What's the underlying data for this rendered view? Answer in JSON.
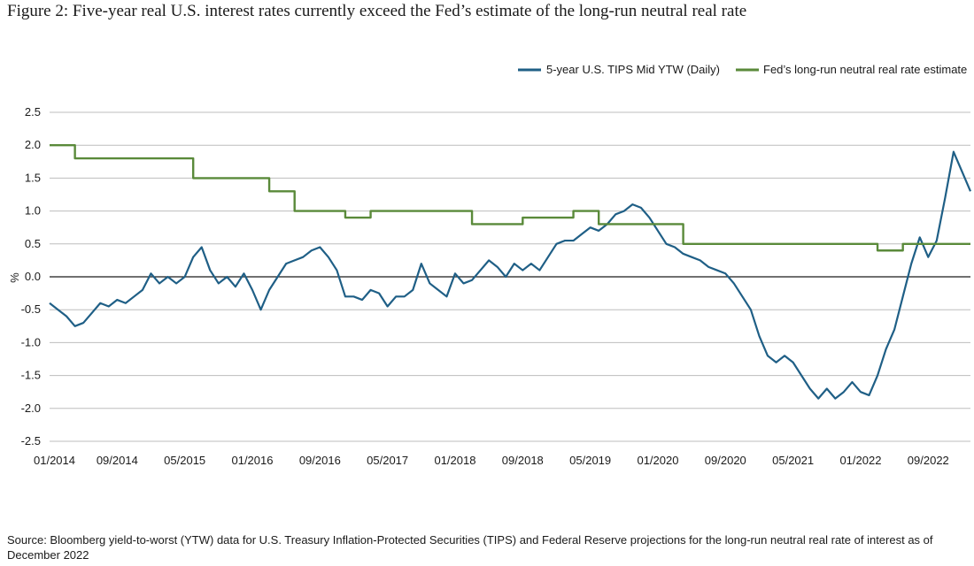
{
  "title": "Figure 2: Five-year real U.S. interest rates currently exceed the Fed’s estimate of the long-run neutral real rate",
  "source": "Source: Bloomberg yield-to-worst (YTW) data for U.S. Treasury Inflation-Protected Securities (TIPS) and Federal Reserve projections for the long-run neutral real rate of interest as of December 2022",
  "chart_data": {
    "type": "line",
    "title": "Figure 2: Five-year real U.S. interest rates currently exceed the Fed’s estimate of the long-run neutral real rate",
    "xlabel": "",
    "ylabel": "%",
    "ylim": [
      -2.5,
      2.5
    ],
    "yticks": [
      "2.5",
      "2.0",
      "1.5",
      "1.0",
      "0.5",
      "0.0",
      "-0.5",
      "-1.0",
      "-1.5",
      "-2.0",
      "-2.5"
    ],
    "xticks": [
      "01/2014",
      "09/2014",
      "05/2015",
      "01/2016",
      "09/2016",
      "05/2017",
      "01/2018",
      "09/2018",
      "05/2019",
      "01/2020",
      "09/2020",
      "05/2021",
      "01/2022",
      "09/2022"
    ],
    "xlim": [
      "2014-01",
      "2023-02"
    ],
    "grid": "horizontal",
    "legend_position": "top-right",
    "colors": {
      "tips": "#1f5f86",
      "neutral": "#5a8a3a"
    },
    "series": [
      {
        "name": "5-year U.S. TIPS Mid YTW (Daily)",
        "color": "#1f5f86",
        "points": [
          [
            "2014-01",
            -0.4
          ],
          [
            "2014-02",
            -0.5
          ],
          [
            "2014-03",
            -0.6
          ],
          [
            "2014-04",
            -0.75
          ],
          [
            "2014-05",
            -0.7
          ],
          [
            "2014-06",
            -0.55
          ],
          [
            "2014-07",
            -0.4
          ],
          [
            "2014-08",
            -0.45
          ],
          [
            "2014-09",
            -0.35
          ],
          [
            "2014-10",
            -0.4
          ],
          [
            "2014-11",
            -0.3
          ],
          [
            "2014-12",
            -0.2
          ],
          [
            "2015-01",
            0.05
          ],
          [
            "2015-02",
            -0.1
          ],
          [
            "2015-03",
            0.0
          ],
          [
            "2015-04",
            -0.1
          ],
          [
            "2015-05",
            0.0
          ],
          [
            "2015-06",
            0.3
          ],
          [
            "2015-07",
            0.45
          ],
          [
            "2015-08",
            0.1
          ],
          [
            "2015-09",
            -0.1
          ],
          [
            "2015-10",
            0.0
          ],
          [
            "2015-11",
            -0.15
          ],
          [
            "2015-12",
            0.05
          ],
          [
            "2016-01",
            -0.2
          ],
          [
            "2016-02",
            -0.5
          ],
          [
            "2016-03",
            -0.2
          ],
          [
            "2016-04",
            0.0
          ],
          [
            "2016-05",
            0.2
          ],
          [
            "2016-06",
            0.25
          ],
          [
            "2016-07",
            0.3
          ],
          [
            "2016-08",
            0.4
          ],
          [
            "2016-09",
            0.45
          ],
          [
            "2016-10",
            0.3
          ],
          [
            "2016-11",
            0.1
          ],
          [
            "2016-12",
            -0.3
          ],
          [
            "2017-01",
            -0.3
          ],
          [
            "2017-02",
            -0.35
          ],
          [
            "2017-03",
            -0.2
          ],
          [
            "2017-04",
            -0.25
          ],
          [
            "2017-05",
            -0.45
          ],
          [
            "2017-06",
            -0.3
          ],
          [
            "2017-07",
            -0.3
          ],
          [
            "2017-08",
            -0.2
          ],
          [
            "2017-09",
            0.2
          ],
          [
            "2017-10",
            -0.1
          ],
          [
            "2017-11",
            -0.2
          ],
          [
            "2017-12",
            -0.3
          ],
          [
            "2018-01",
            0.05
          ],
          [
            "2018-02",
            -0.1
          ],
          [
            "2018-03",
            -0.05
          ],
          [
            "2018-04",
            0.1
          ],
          [
            "2018-05",
            0.25
          ],
          [
            "2018-06",
            0.15
          ],
          [
            "2018-07",
            0.0
          ],
          [
            "2018-08",
            0.2
          ],
          [
            "2018-09",
            0.1
          ],
          [
            "2018-10",
            0.2
          ],
          [
            "2018-11",
            0.1
          ],
          [
            "2018-12",
            0.3
          ],
          [
            "2019-01",
            0.5
          ],
          [
            "2019-02",
            0.55
          ],
          [
            "2019-03",
            0.55
          ],
          [
            "2019-04",
            0.65
          ],
          [
            "2019-05",
            0.75
          ],
          [
            "2019-06",
            0.7
          ],
          [
            "2019-07",
            0.8
          ],
          [
            "2019-08",
            0.95
          ],
          [
            "2019-09",
            1.0
          ],
          [
            "2019-10",
            1.1
          ],
          [
            "2019-11",
            1.05
          ],
          [
            "2019-12",
            0.9
          ],
          [
            "2020-01",
            0.7
          ],
          [
            "2020-02",
            0.5
          ],
          [
            "2020-03",
            0.45
          ],
          [
            "2020-04",
            0.35
          ],
          [
            "2020-05",
            0.3
          ],
          [
            "2020-06",
            0.25
          ],
          [
            "2020-07",
            0.15
          ],
          [
            "2020-08",
            0.1
          ],
          [
            "2020-09",
            0.05
          ],
          [
            "2020-10",
            -0.1
          ],
          [
            "2020-11",
            -0.3
          ],
          [
            "2020-12",
            -0.5
          ],
          [
            "2021-01",
            -0.9
          ],
          [
            "2021-02",
            -1.2
          ],
          [
            "2021-03",
            -1.3
          ],
          [
            "2021-04",
            -1.2
          ],
          [
            "2021-05",
            -1.3
          ],
          [
            "2021-06",
            -1.5
          ],
          [
            "2021-07",
            -1.7
          ],
          [
            "2021-08",
            -1.85
          ],
          [
            "2021-09",
            -1.7
          ],
          [
            "2021-10",
            -1.85
          ],
          [
            "2021-11",
            -1.75
          ],
          [
            "2021-12",
            -1.6
          ],
          [
            "2022-01",
            -1.75
          ],
          [
            "2022-02",
            -1.8
          ],
          [
            "2022-03",
            -1.5
          ],
          [
            "2022-04",
            -1.1
          ],
          [
            "2022-05",
            -0.8
          ],
          [
            "2022-06",
            -0.3
          ],
          [
            "2022-07",
            0.2
          ],
          [
            "2022-08",
            0.6
          ],
          [
            "2022-09",
            0.3
          ],
          [
            "2022-10",
            0.55
          ],
          [
            "2022-11",
            1.2
          ],
          [
            "2022-12",
            1.9
          ],
          [
            "2023-01",
            1.6
          ],
          [
            "2023-02",
            1.3
          ]
        ]
      },
      {
        "name": "Fed’s long-run neutral real rate estimate",
        "color": "#5a8a3a",
        "step": true,
        "points": [
          [
            "2014-01",
            2.0
          ],
          [
            "2014-04",
            1.8
          ],
          [
            "2015-06",
            1.5
          ],
          [
            "2016-03",
            1.3
          ],
          [
            "2016-06",
            1.0
          ],
          [
            "2016-12",
            0.9
          ],
          [
            "2017-03",
            1.0
          ],
          [
            "2018-03",
            0.8
          ],
          [
            "2018-09",
            0.9
          ],
          [
            "2019-03",
            1.0
          ],
          [
            "2019-06",
            0.8
          ],
          [
            "2020-04",
            0.5
          ],
          [
            "2022-03",
            0.4
          ],
          [
            "2022-06",
            0.5
          ],
          [
            "2023-02",
            0.5
          ]
        ]
      }
    ]
  }
}
